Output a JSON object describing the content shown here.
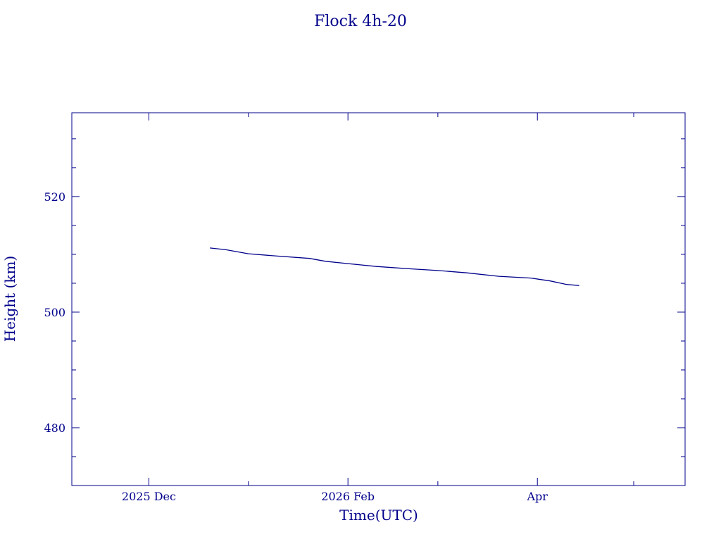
{
  "chart_data": {
    "type": "line",
    "title": "Flock 4h-20",
    "xlabel": "Time(UTC)",
    "ylabel": "Height (km)",
    "xlim": [
      "2025-11-07",
      "2026-05-17"
    ],
    "ylim": [
      470,
      534.5
    ],
    "y_major_ticks": [
      480,
      500,
      520
    ],
    "y_minor_step": 5,
    "x_major_ticks": [
      {
        "date": "2025-12-01",
        "label": "2025 Dec"
      },
      {
        "date": "2026-02-01",
        "label": "2026 Feb"
      },
      {
        "date": "2026-04-01",
        "label": "Apr"
      }
    ],
    "x_minor_ticks": [
      "2026-01-01",
      "2026-03-01",
      "2026-05-01"
    ],
    "grid": false,
    "color": "#00008b",
    "series": [
      {
        "x": [
          "2025-12-20",
          "2025-12-25",
          "2026-01-01",
          "2026-01-10",
          "2026-01-20",
          "2026-01-25",
          "2026-02-01",
          "2026-02-10",
          "2026-02-20",
          "2026-03-01",
          "2026-03-10",
          "2026-03-20",
          "2026-03-30",
          "2026-04-05",
          "2026-04-10",
          "2026-04-14"
        ],
        "y": [
          511.1,
          510.8,
          510.1,
          509.7,
          509.3,
          508.8,
          508.4,
          507.9,
          507.5,
          507.2,
          506.8,
          506.2,
          505.9,
          505.4,
          504.8,
          504.6
        ]
      }
    ]
  }
}
